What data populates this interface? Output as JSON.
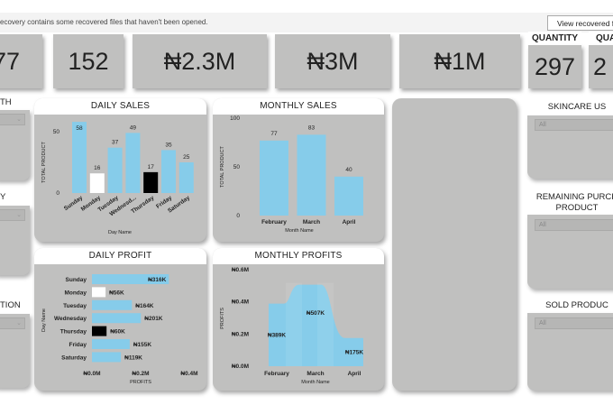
{
  "notification": {
    "message": "ecovery contains some recovered files that haven't been opened.",
    "button": "View recovered f"
  },
  "kpis": [
    {
      "value": "77"
    },
    {
      "value": "152"
    },
    {
      "value": "₦2.3M"
    },
    {
      "value": "₦3M"
    },
    {
      "value": "₦1M"
    },
    {
      "label": "QUANTITY",
      "value": "297"
    },
    {
      "label": "QUA",
      "value": "2"
    }
  ],
  "left_slicers": [
    {
      "label": "TH"
    },
    {
      "label": "Y"
    },
    {
      "label": "TION"
    }
  ],
  "right_slicers": [
    {
      "label": "SKINCARE US",
      "value": "All"
    },
    {
      "label": "REMAINING PURCH",
      "label2": "PRODUCT",
      "value": "All"
    },
    {
      "label": "SOLD PRODUC",
      "value": "All"
    }
  ],
  "colors": {
    "bar": "#86ccea",
    "highlight_max": "#86ccea",
    "highlight_min_white": "#ffffff",
    "highlight_black": "#000000",
    "card": "#c0c0bf"
  },
  "chart_data": [
    {
      "id": "daily_sales",
      "type": "bar",
      "title": "DAILY SALES",
      "xlabel": "Day Name",
      "ylabel": "TOTAL PRODUCT",
      "categories": [
        "Sunday",
        "Monday",
        "Tuesday",
        "Wednesd...",
        "Thursday",
        "Friday",
        "Saturday"
      ],
      "values": [
        58,
        16,
        37,
        49,
        17,
        35,
        25
      ],
      "bar_colors": [
        "#86ccea",
        "#ffffff",
        "#86ccea",
        "#86ccea",
        "#000000",
        "#86ccea",
        "#86ccea"
      ],
      "yticks": [
        "0",
        "50"
      ],
      "ylim": [
        0,
        60
      ]
    },
    {
      "id": "monthly_sales",
      "type": "bar",
      "title": "MONTHLY SALES",
      "xlabel": "Month Name",
      "ylabel": "TOTAL PRODUCT",
      "categories": [
        "February",
        "March",
        "April"
      ],
      "values": [
        77,
        83,
        40
      ],
      "yticks": [
        "0",
        "50",
        "100"
      ],
      "ylim": [
        0,
        100
      ]
    },
    {
      "id": "daily_profit",
      "type": "bar",
      "orientation": "horizontal",
      "title": "DAILY PROFIT",
      "xlabel": "PROFITS",
      "ylabel": "Day Name",
      "categories": [
        "Sunday",
        "Monday",
        "Tuesday",
        "Wednesday",
        "Thursday",
        "Friday",
        "Saturday"
      ],
      "values": [
        316,
        56,
        164,
        201,
        60,
        155,
        119
      ],
      "labels": [
        "₦316K",
        "₦56K",
        "₦164K",
        "₦201K",
        "₦60K",
        "₦155K",
        "₦119K"
      ],
      "bar_colors": [
        "#86ccea",
        "#ffffff",
        "#86ccea",
        "#86ccea",
        "#000000",
        "#86ccea",
        "#86ccea"
      ],
      "xticks": [
        "₦0.0M",
        "₦0.2M",
        "₦0.4M"
      ],
      "xlim": [
        0,
        400
      ],
      "unit": "K"
    },
    {
      "id": "monthly_profits",
      "type": "area",
      "title": "MONTHLY PROFITS",
      "xlabel": "Month Name",
      "ylabel": "PROFITS",
      "categories": [
        "February",
        "March",
        "April"
      ],
      "values": [
        389,
        507,
        175
      ],
      "labels": [
        "₦389K",
        "₦507K",
        "₦175K"
      ],
      "yticks": [
        "₦0.0M",
        "₦0.2M",
        "₦0.4M",
        "₦0.6M"
      ],
      "ylim": [
        0,
        600
      ],
      "unit": "K"
    }
  ]
}
